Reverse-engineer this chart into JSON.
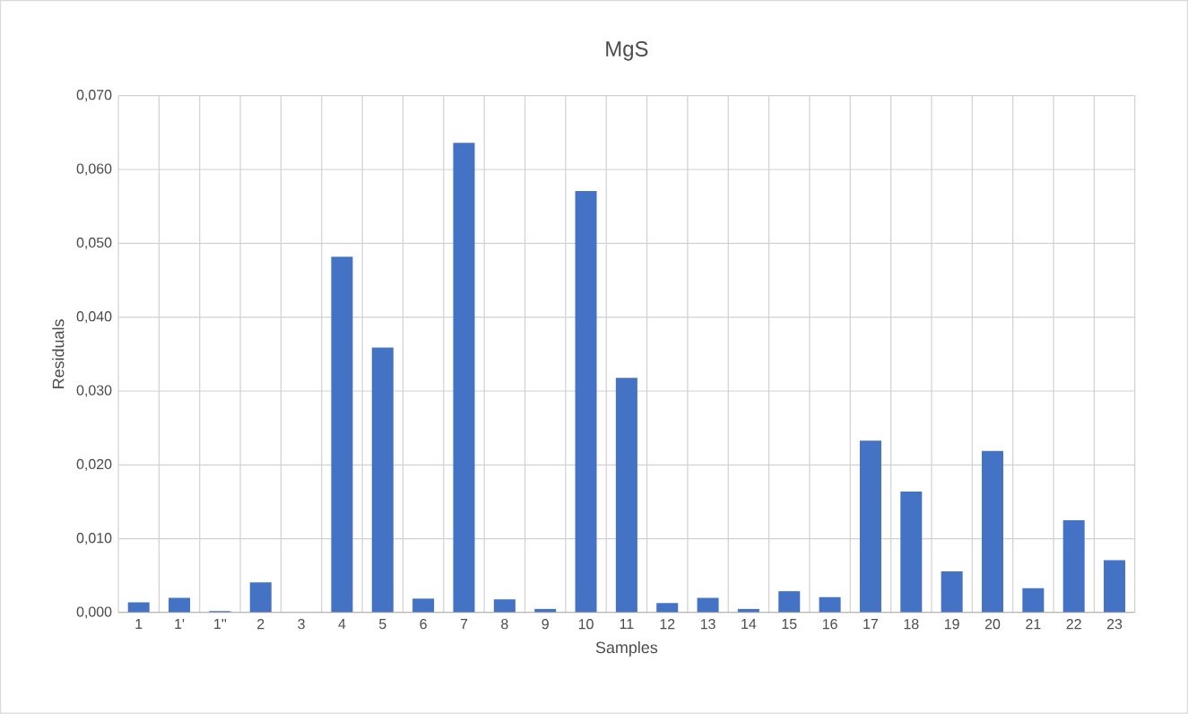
{
  "chart_data": {
    "type": "bar",
    "title": "MgS",
    "xlabel": "Samples",
    "ylabel": "Residuals",
    "categories": [
      "1",
      "1'",
      "1''",
      "2",
      "3",
      "4",
      "5",
      "6",
      "7",
      "8",
      "9",
      "10",
      "11",
      "12",
      "13",
      "14",
      "15",
      "16",
      "17",
      "18",
      "19",
      "20",
      "21",
      "22",
      "23"
    ],
    "values": [
      0.0014,
      0.002,
      0.0002,
      0.0041,
      null,
      0.0482,
      0.0359,
      0.0019,
      0.0636,
      0.0018,
      0.0005,
      0.0571,
      0.0318,
      0.0013,
      0.002,
      0.0005,
      0.0029,
      0.0021,
      0.0233,
      0.0164,
      0.0056,
      0.0219,
      0.0033,
      0.0125,
      0.0071
    ],
    "color": "#4472c4",
    "ylim": [
      0,
      0.07
    ],
    "yticks": [
      {
        "value": 0,
        "label": "0,000"
      },
      {
        "value": 0.01,
        "label": "0,010"
      },
      {
        "value": 0.02,
        "label": "0,020"
      },
      {
        "value": 0.03,
        "label": "0,030"
      },
      {
        "value": 0.04,
        "label": "0,040"
      },
      {
        "value": 0.05,
        "label": "0,050"
      },
      {
        "value": 0.06,
        "label": "0,060"
      },
      {
        "value": 0.07,
        "label": "0,070"
      }
    ],
    "grid": true
  }
}
